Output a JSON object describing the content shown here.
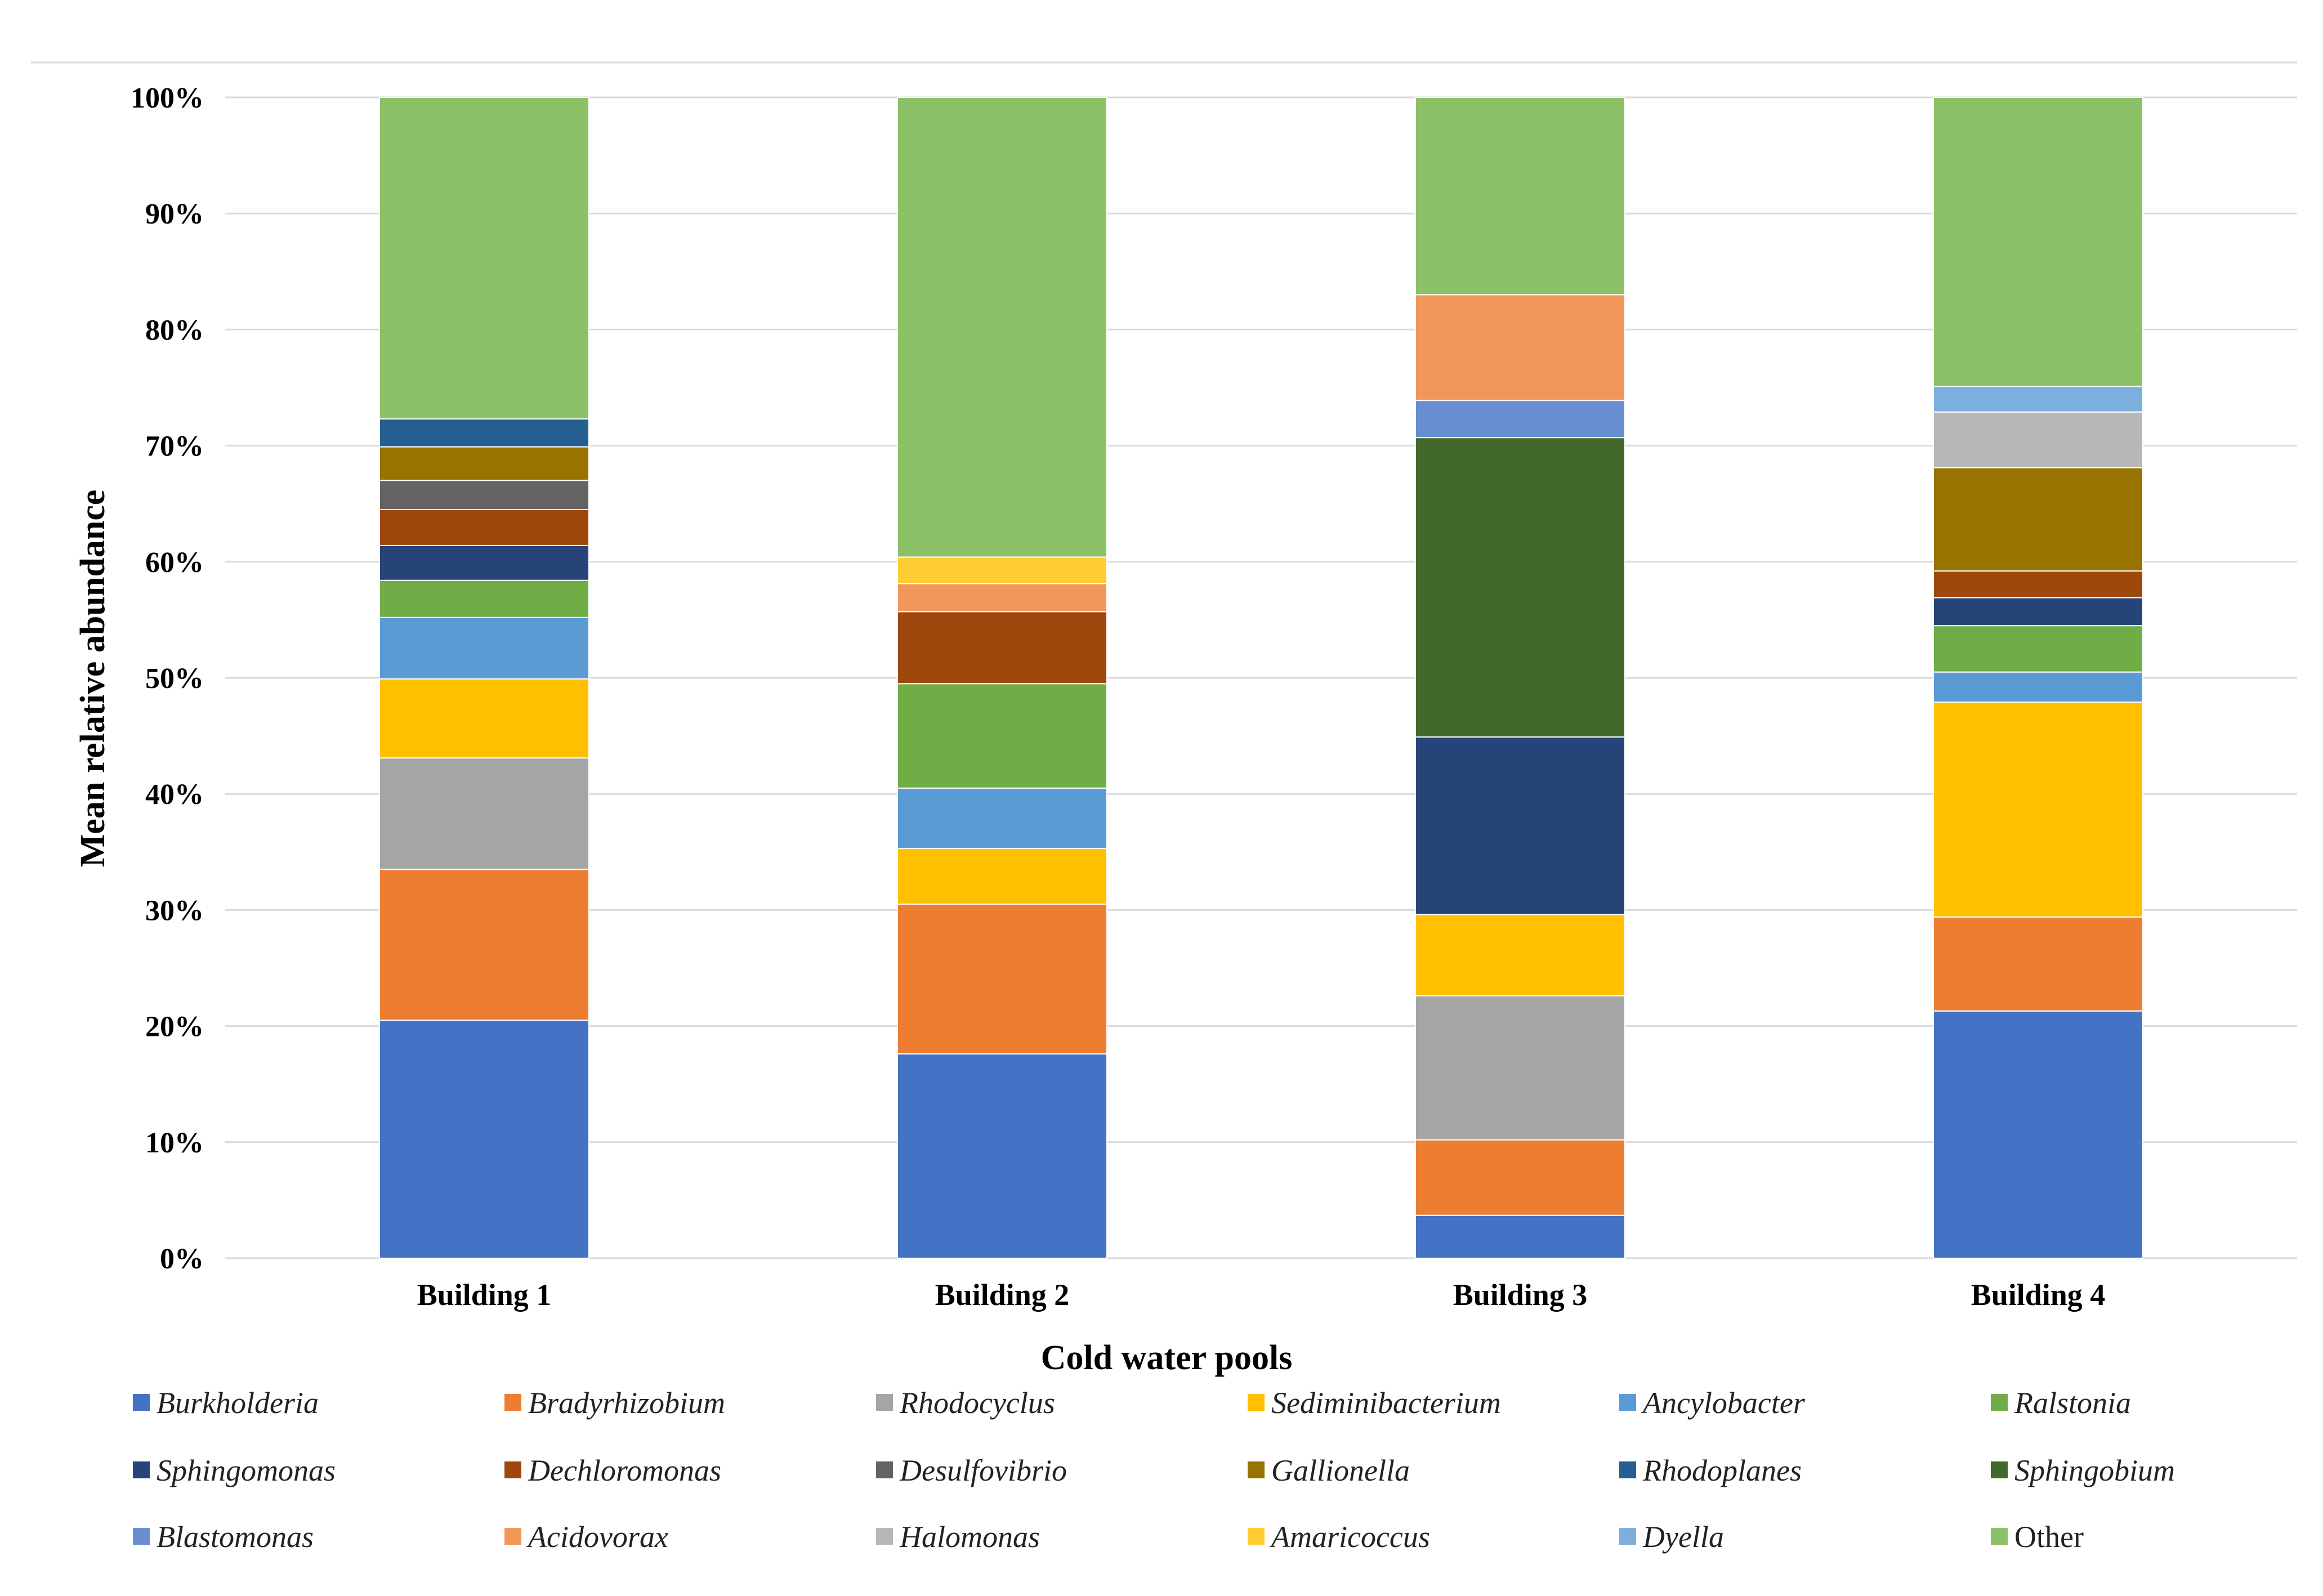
{
  "chart_data": {
    "type": "bar",
    "stacked": true,
    "normalized": true,
    "title": "",
    "xlabel": "Cold water pools",
    "ylabel": "Mean relative abundance",
    "ylim": [
      0,
      100
    ],
    "y_ticks": [
      "0%",
      "10%",
      "20%",
      "30%",
      "40%",
      "50%",
      "60%",
      "70%",
      "80%",
      "90%",
      "100%"
    ],
    "grid": true,
    "legend_position": "bottom",
    "categories": [
      "Building 1",
      "Building 2",
      "Building 3",
      "Building 4"
    ],
    "series": [
      {
        "name": "Burkholderia",
        "italic": true,
        "color": "#4472C4",
        "values": [
          20.5,
          17.6,
          3.7,
          21.3
        ]
      },
      {
        "name": "Bradyrhizobium",
        "italic": true,
        "color": "#ED7D31",
        "values": [
          13.0,
          12.9,
          6.5,
          8.1
        ]
      },
      {
        "name": "Rhodocyclus",
        "italic": true,
        "color": "#A5A5A5",
        "values": [
          9.6,
          0,
          12.4,
          0
        ]
      },
      {
        "name": "Sediminibacterium",
        "italic": true,
        "color": "#FFC000",
        "values": [
          6.8,
          4.8,
          7.0,
          18.5
        ]
      },
      {
        "name": "Ancylobacter",
        "italic": true,
        "color": "#5B9BD5",
        "values": [
          5.3,
          5.2,
          0,
          2.6
        ]
      },
      {
        "name": "Ralstonia",
        "italic": true,
        "color": "#70AD47",
        "values": [
          3.2,
          9.0,
          0,
          4.0
        ]
      },
      {
        "name": "Sphingomonas",
        "italic": true,
        "color": "#264478",
        "values": [
          3.0,
          0,
          15.3,
          2.4
        ]
      },
      {
        "name": "Dechloromonas",
        "italic": true,
        "color": "#9E480E",
        "values": [
          3.1,
          6.2,
          0,
          2.3
        ]
      },
      {
        "name": "Desulfovibrio",
        "italic": true,
        "color": "#636363",
        "values": [
          2.5,
          0,
          0,
          0
        ]
      },
      {
        "name": "Gallionella",
        "italic": true,
        "color": "#997300",
        "values": [
          2.9,
          0,
          0,
          8.9
        ]
      },
      {
        "name": "Rhodoplanes",
        "italic": true,
        "color": "#255E91",
        "values": [
          2.4,
          0,
          0,
          0
        ]
      },
      {
        "name": "Sphingobium",
        "italic": true,
        "color": "#43682B",
        "values": [
          0,
          0,
          25.8,
          0
        ]
      },
      {
        "name": "Blastomonas",
        "italic": true,
        "color": "#698ED0",
        "values": [
          0,
          0,
          3.2,
          0
        ]
      },
      {
        "name": "Acidovorax",
        "italic": true,
        "color": "#F1975A",
        "values": [
          0,
          2.4,
          9.1,
          0
        ]
      },
      {
        "name": "Halomonas",
        "italic": true,
        "color": "#B7B7B7",
        "values": [
          0,
          0,
          0,
          4.8
        ]
      },
      {
        "name": "Amaricoccus",
        "italic": true,
        "color": "#FFCD33",
        "values": [
          0,
          2.3,
          0,
          0
        ]
      },
      {
        "name": "Dyella",
        "italic": true,
        "color": "#7CAFDD",
        "values": [
          0,
          0,
          0,
          2.2
        ]
      },
      {
        "name": "Other",
        "italic": false,
        "color": "#8CC168",
        "values": [
          27.7,
          39.6,
          17.0,
          24.9
        ]
      }
    ]
  }
}
